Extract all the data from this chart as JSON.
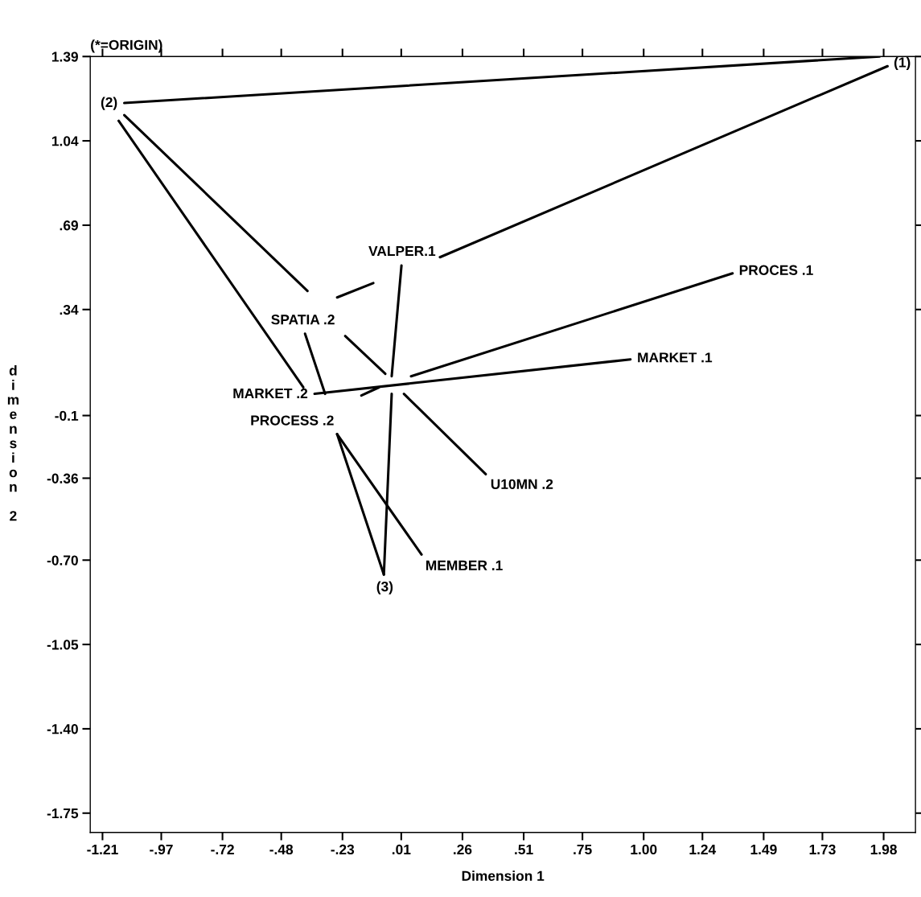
{
  "chart_data": {
    "type": "line",
    "xlabel": "Dimension 1",
    "ylabel": "dimension 2",
    "xlim": [
      -1.26,
      2.11
    ],
    "ylim": [
      -1.83,
      1.39
    ],
    "xticks": [
      {
        "value": -1.21,
        "label": "-1.21"
      },
      {
        "value": -0.97,
        "label": "-.97"
      },
      {
        "value": -0.72,
        "label": "-.72"
      },
      {
        "value": -0.48,
        "label": "-.48"
      },
      {
        "value": -0.23,
        "label": "-.23"
      },
      {
        "value": 0.01,
        "label": ".01"
      },
      {
        "value": 0.26,
        "label": ".26"
      },
      {
        "value": 0.51,
        "label": ".51"
      },
      {
        "value": 0.75,
        "label": ".75"
      },
      {
        "value": 1.0,
        "label": "1.00"
      },
      {
        "value": 1.24,
        "label": "1.24"
      },
      1.49,
      1.73,
      1.98
    ],
    "yticks": [
      1.39,
      1.04,
      {
        "value": 0.69,
        "label": ".69"
      },
      {
        "value": 0.34,
        "label": ".34"
      },
      -0.1,
      -0.36,
      {
        "value": -0.7,
        "label": "-0.70"
      },
      -1.05,
      {
        "value": -1.4,
        "label": "-1.40"
      },
      -1.75
    ],
    "grid": false,
    "marker": "none",
    "line_style": "solid",
    "series": [
      {
        "color": "#000000",
        "x": [
          -1.121,
          1.964
        ],
        "values": [
          1.197,
          1.39
        ]
      },
      {
        "color": "#000000",
        "x": [
          1.996,
          0.168
        ],
        "values": [
          1.35,
          0.557
        ]
      },
      {
        "color": "#000000",
        "x": [
          -1.121,
          -0.373
        ],
        "values": [
          1.147,
          0.417
        ]
      },
      {
        "color": "#000000",
        "x": [
          -1.144,
          -0.39
        ],
        "values": [
          1.123,
          0.017
        ]
      },
      {
        "color": "#000000",
        "x": [
          -0.252,
          -0.104
        ],
        "values": [
          0.39,
          0.45
        ]
      },
      {
        "color": "#000000",
        "x": [
          0.011,
          -0.029
        ],
        "values": [
          0.523,
          0.063
        ]
      },
      {
        "color": "#000000",
        "x": [
          -0.219,
          -0.055
        ],
        "values": [
          0.23,
          0.073
        ]
      },
      {
        "color": "#000000",
        "x": [
          0.05,
          1.363
        ],
        "values": [
          0.063,
          0.49
        ]
      },
      {
        "color": "#000000",
        "x": [
          -0.344,
          0.946
        ],
        "values": [
          -0.01,
          0.133
        ]
      },
      {
        "color": "#000000",
        "x": [
          -0.153,
          -0.081
        ],
        "values": [
          -0.017,
          0.017
        ]
      },
      {
        "color": "#000000",
        "x": [
          0.021,
          0.355
        ],
        "values": [
          -0.01,
          -0.343
        ]
      },
      {
        "color": "#000000",
        "x": [
          -0.383,
          -0.301
        ],
        "values": [
          0.24,
          -0.01
        ]
      },
      {
        "color": "#000000",
        "x": [
          -0.252,
          -0.061
        ],
        "values": [
          -0.177,
          -0.76
        ]
      },
      {
        "color": "#000000",
        "x": [
          -0.252,
          0.093
        ],
        "values": [
          -0.177,
          -0.677
        ]
      },
      {
        "color": "#000000",
        "x": [
          -0.029,
          -0.061
        ],
        "values": [
          -0.01,
          -0.76
        ]
      }
    ],
    "annotations": [
      "(*=ORIGIN)",
      {
        "text": "(1)",
        "x": 1.996,
        "y": 1.35
      },
      {
        "text": "(2)",
        "x": -1.121,
        "y": 1.197
      },
      {
        "text": "(3)",
        "x": -0.061,
        "y": -0.76
      },
      {
        "text": "VALPER.1",
        "x": 0.011,
        "y": 0.523
      },
      {
        "text": "SPATIA .2",
        "x": -0.383,
        "y": 0.24
      },
      {
        "text": "PROCES .1",
        "x": 1.363,
        "y": 0.49
      },
      {
        "text": "MARKET .1",
        "x": 0.946,
        "y": 0.133
      },
      {
        "text": "MARKET .2",
        "x": -0.344,
        "y": -0.01
      },
      {
        "text": "PROCESS .2",
        "x": -0.252,
        "y": -0.177
      },
      {
        "text": "U10MN .2",
        "x": 0.355,
        "y": -0.343
      },
      {
        "text": "MEMBER .1",
        "x": 0.093,
        "y": -0.677
      }
    ]
  }
}
